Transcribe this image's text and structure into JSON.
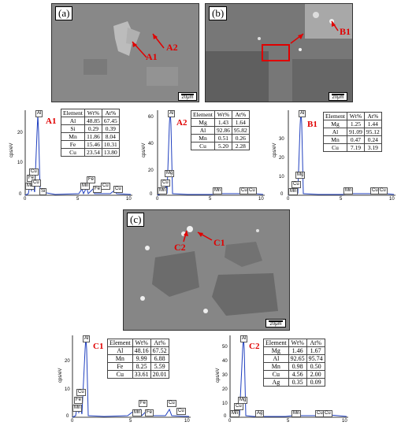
{
  "images": {
    "a": {
      "label": "(a)",
      "callouts": [
        "A1",
        "A2"
      ],
      "scale": "20μm"
    },
    "b": {
      "label": "(b)",
      "callouts": [
        "B1"
      ],
      "scale": "20μm"
    },
    "c": {
      "label": "(c)",
      "callouts": [
        "C2",
        "C1"
      ],
      "scale": "20μm"
    }
  },
  "spectra": {
    "A1": {
      "title": "A1",
      "ylabel": "cps/eV",
      "yticks": [
        "20",
        "10",
        "0"
      ],
      "xticks": [
        "0",
        "5",
        "10"
      ],
      "peaks": [
        {
          "label": "Al",
          "x": 1.49
        },
        {
          "label": "Cu",
          "x": 0.93
        },
        {
          "label": "Fe",
          "x": 0.7
        },
        {
          "label": "Mn",
          "x": 0.64
        },
        {
          "label": "Cu",
          "x": 0.93
        },
        {
          "label": "Si",
          "x": 1.74
        },
        {
          "label": "Mn",
          "x": 5.9
        },
        {
          "label": "Fe",
          "x": 6.4
        },
        {
          "label": "Cu",
          "x": 8.05
        },
        {
          "label": "Fe",
          "x": 7.06
        },
        {
          "label": "Cu",
          "x": 8.9
        }
      ],
      "table": {
        "headers": [
          "Element",
          "Wt%",
          "At%"
        ],
        "rows": [
          [
            "Al",
            "48.85",
            "67.45"
          ],
          [
            "Si",
            "0.29",
            "0.39"
          ],
          [
            "Mn",
            "11.86",
            "8.04"
          ],
          [
            "Fe",
            "15.46",
            "10.31"
          ],
          [
            "Cu",
            "23.54",
            "13.80"
          ]
        ]
      }
    },
    "A2": {
      "title": "A2",
      "ylabel": "cps/eV",
      "yticks": [
        "60",
        "40",
        "20",
        "0"
      ],
      "xticks": [
        "0",
        "5",
        "10"
      ],
      "peaks": [
        {
          "label": "Al",
          "x": 1.49
        },
        {
          "label": "Mg",
          "x": 1.25
        },
        {
          "label": "Cu",
          "x": 0.93
        },
        {
          "label": "Mn",
          "x": 0.64
        },
        {
          "label": "Mn",
          "x": 5.9
        },
        {
          "label": "Cu",
          "x": 8.05
        },
        {
          "label": "Cu",
          "x": 8.9
        }
      ],
      "table": {
        "headers": [
          "Element",
          "Wt%",
          "At%"
        ],
        "rows": [
          [
            "Mg",
            "1.43",
            "1.64"
          ],
          [
            "Al",
            "92.86",
            "95.82"
          ],
          [
            "Mn",
            "0.51",
            "0.26"
          ],
          [
            "Cu",
            "5.20",
            "2.28"
          ]
        ]
      }
    },
    "B1": {
      "title": "B1",
      "ylabel": "cps/eV",
      "yticks": [
        "30",
        "20",
        "10",
        "0"
      ],
      "xticks": [
        "0",
        "5",
        "10"
      ],
      "peaks": [
        {
          "label": "Al",
          "x": 1.49
        },
        {
          "label": "Mg",
          "x": 1.25
        },
        {
          "label": "Cu",
          "x": 0.93
        },
        {
          "label": "Mn",
          "x": 0.64
        },
        {
          "label": "Mn",
          "x": 5.9
        },
        {
          "label": "Cu",
          "x": 8.05
        },
        {
          "label": "Cu",
          "x": 8.9
        }
      ],
      "table": {
        "headers": [
          "Element",
          "Wt%",
          "At%"
        ],
        "rows": [
          [
            "Mg",
            "1.25",
            "1.44"
          ],
          [
            "Al",
            "91.09",
            "95.12"
          ],
          [
            "Mn",
            "0.47",
            "0.24"
          ],
          [
            "Cu",
            "7.19",
            "3.19"
          ]
        ]
      }
    },
    "C1": {
      "title": "C1",
      "ylabel": "cps/eV",
      "yticks": [
        "20",
        "10",
        "0"
      ],
      "xticks": [
        "0",
        "5",
        "10"
      ],
      "peaks": [
        {
          "label": "Al",
          "x": 1.49
        },
        {
          "label": "Cu",
          "x": 0.93
        },
        {
          "label": "Fe",
          "x": 0.7
        },
        {
          "label": "Mn",
          "x": 0.64
        },
        {
          "label": "Fe",
          "x": 6.4
        },
        {
          "label": "Mn",
          "x": 5.9
        },
        {
          "label": "Fe",
          "x": 7.06
        },
        {
          "label": "Cu",
          "x": 8.05
        },
        {
          "label": "Cu",
          "x": 8.9
        }
      ],
      "table": {
        "headers": [
          "Element",
          "Wt%",
          "At%"
        ],
        "rows": [
          [
            "Al",
            "48.16",
            "67.52"
          ],
          [
            "Mn",
            "9.99",
            "6.88"
          ],
          [
            "Fe",
            "8.25",
            "5.59"
          ],
          [
            "Cu",
            "33.61",
            "20.01"
          ]
        ]
      }
    },
    "C2": {
      "title": "C2",
      "ylabel": "cps/eV",
      "yticks": [
        "50",
        "40",
        "30",
        "20",
        "10",
        "0"
      ],
      "xticks": [
        "0",
        "5",
        "10"
      ],
      "peaks": [
        {
          "label": "Al",
          "x": 1.49
        },
        {
          "label": "Mg",
          "x": 1.25
        },
        {
          "label": "Cu",
          "x": 0.93
        },
        {
          "label": "Mn",
          "x": 0.64
        },
        {
          "label": "Ag",
          "x": 2.98
        },
        {
          "label": "Mn",
          "x": 5.9
        },
        {
          "label": "Cu",
          "x": 8.05
        },
        {
          "label": "Cu",
          "x": 8.9
        }
      ],
      "table": {
        "headers": [
          "Element",
          "Wt%",
          "At%"
        ],
        "rows": [
          [
            "Mg",
            "1.46",
            "1.67"
          ],
          [
            "Al",
            "92.65",
            "95.74"
          ],
          [
            "Mn",
            "0.98",
            "0.50"
          ],
          [
            "Cu",
            "4.56",
            "2.00"
          ],
          [
            "Ag",
            "0.35",
            "0.09"
          ]
        ]
      }
    }
  },
  "colors": {
    "callout": "#e00000",
    "spectrum": "#1f3fbf",
    "sem_gray": "#7f7f7f"
  }
}
